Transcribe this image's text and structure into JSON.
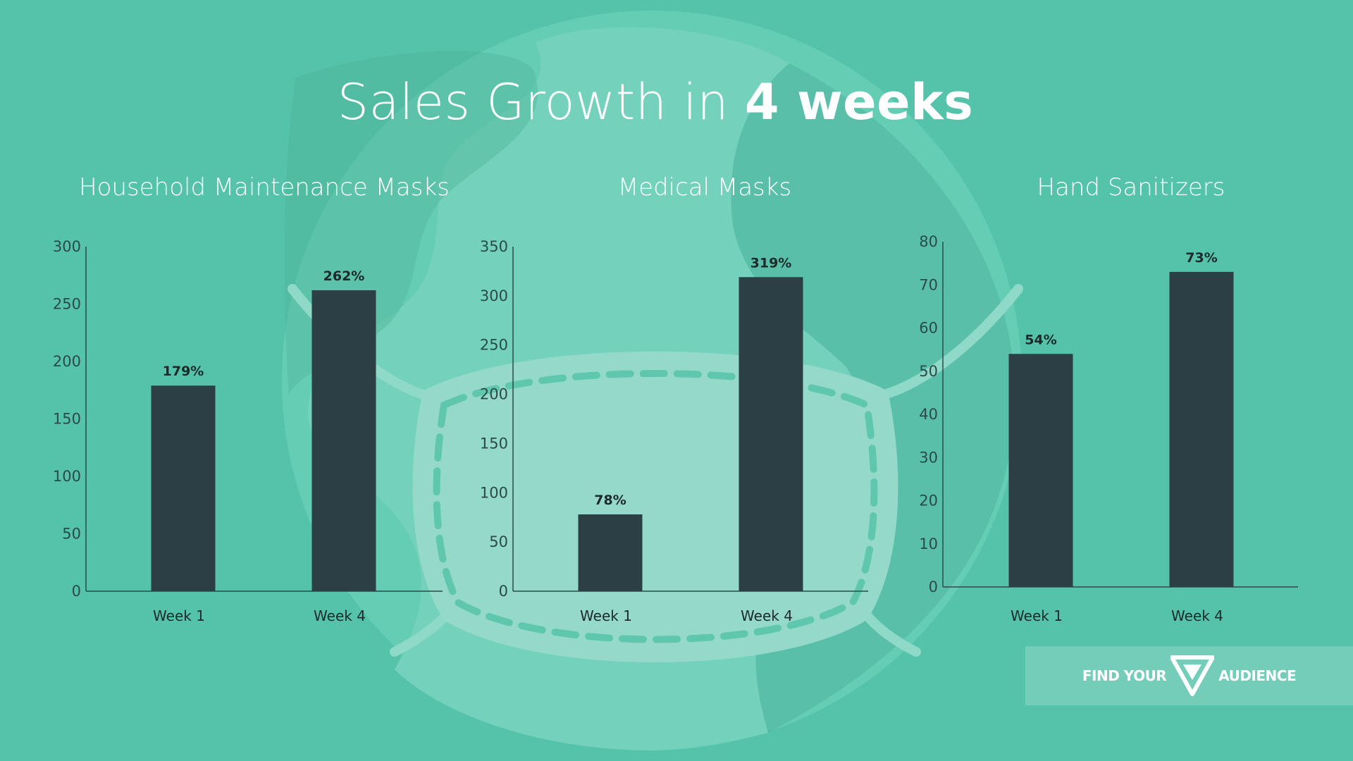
{
  "title": {
    "light": "Sales Growth in",
    "bold": "4 weeks"
  },
  "colors": {
    "background": "#55c2aa",
    "bar": "#2b3f45",
    "axis": "#2b4a4a",
    "label": "#1d2a2c",
    "title": "#ffffff"
  },
  "logo": {
    "left": "FIND YOUR",
    "right": "AUDIENCE",
    "icon": "triangle-logo-icon"
  },
  "chart_data": [
    {
      "type": "bar",
      "title": "Household Maintenance Masks",
      "categories": [
        "Week 1",
        "Week 4"
      ],
      "values": [
        179,
        262
      ],
      "data_labels": [
        "179%",
        "262%"
      ],
      "ylim": [
        0,
        300
      ],
      "yticks": [
        0,
        50,
        100,
        150,
        200,
        250,
        300
      ],
      "xlabel": "",
      "ylabel": ""
    },
    {
      "type": "bar",
      "title": "Medical Masks",
      "categories": [
        "Week 1",
        "Week 4"
      ],
      "values": [
        78,
        319
      ],
      "data_labels": [
        "78%",
        "319%"
      ],
      "ylim": [
        0,
        350
      ],
      "yticks": [
        0,
        50,
        100,
        150,
        200,
        250,
        300,
        350
      ],
      "xlabel": "",
      "ylabel": ""
    },
    {
      "type": "bar",
      "title": "Hand Sanitizers",
      "categories": [
        "Week 1",
        "Week 4"
      ],
      "values": [
        54,
        73
      ],
      "data_labels": [
        "54%",
        "73%"
      ],
      "ylim": [
        0,
        80
      ],
      "yticks": [
        0,
        10,
        20,
        30,
        40,
        50,
        60,
        70,
        80
      ],
      "xlabel": "",
      "ylabel": ""
    }
  ]
}
